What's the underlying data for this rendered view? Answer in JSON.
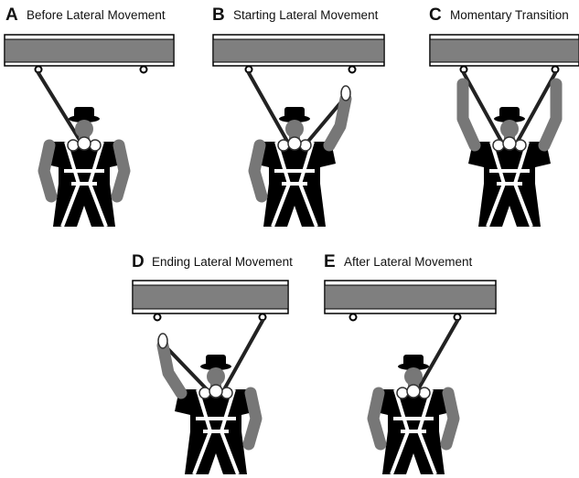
{
  "panels": [
    {
      "letter": "A",
      "label": "Before Lateral Movement"
    },
    {
      "letter": "B",
      "label": "Starting Lateral Movement"
    },
    {
      "letter": "C",
      "label": "Momentary Transition"
    },
    {
      "letter": "D",
      "label": "Ending Lateral Movement"
    },
    {
      "letter": "E",
      "label": "After Lateral Movement"
    }
  ]
}
